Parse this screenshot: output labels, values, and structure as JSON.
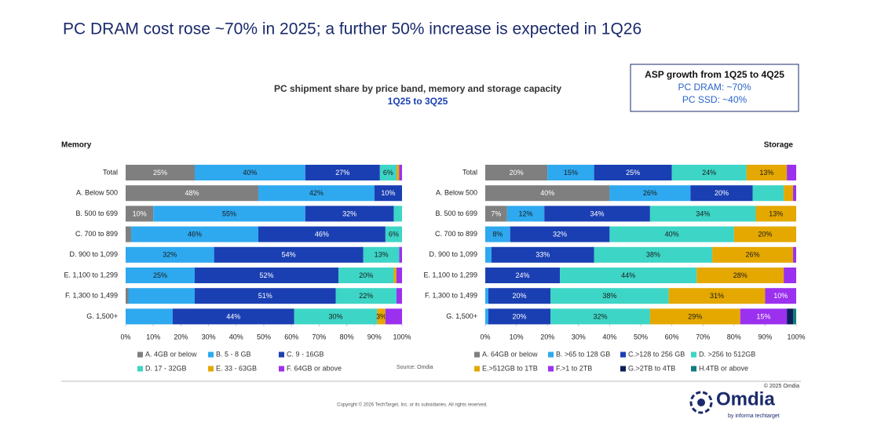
{
  "header": {
    "title": "PC DRAM cost rose ~70% in 2025; a further 50% increase is expected in 1Q26"
  },
  "asp_box": {
    "title": "ASP growth from 1Q25 to 4Q25",
    "lines": [
      "PC DRAM: ~70%",
      "PC SSD: ~40%"
    ]
  },
  "figure": {
    "title": "PC shipment share by price band, memory and storage capacity",
    "subtitle": "1Q25 to 3Q25",
    "source": "Source: Omdia"
  },
  "footer": {
    "copyright": "Copyright © 2026 TechTarget, Inc. or its subsidiaries. All rights reserved.",
    "logo_year": "© 2025 Omdia",
    "logo_name": "Omdia",
    "logo_tagline": "by informa techtarget"
  },
  "chart_data": [
    {
      "type": "bar",
      "orientation": "horizontal",
      "stacked": true,
      "title": "Memory",
      "categories": [
        "Total",
        "A. Below 500",
        "B. 500 to 699",
        "C. 700 to 899",
        "D. 900 to 1,099",
        "E. 1,100 to 1,299",
        "F. 1,300 to 1,499",
        "G. 1,500+"
      ],
      "xlim": [
        0,
        100
      ],
      "xticks": [
        {
          "value": 0,
          "label": "0%"
        },
        {
          "value": 10,
          "label": "10%"
        },
        {
          "value": 20,
          "label": "20%"
        },
        {
          "value": 30,
          "label": "30%"
        },
        {
          "value": 40,
          "label": "40%"
        },
        {
          "value": 50,
          "label": "50%"
        },
        {
          "value": 60,
          "label": "60%"
        },
        {
          "value": 70,
          "label": "70%"
        },
        {
          "value": 80,
          "label": "80%"
        },
        {
          "value": 90,
          "label": "90%"
        },
        {
          "value": 100,
          "label": "100%"
        }
      ],
      "series": [
        {
          "name": "A. 4GB or below",
          "color": "#7f7f7f",
          "values": [
            25,
            48,
            10,
            2,
            0,
            0,
            1,
            0
          ],
          "value_labels": [
            "25%",
            "48%",
            "10%",
            null,
            null,
            null,
            null,
            null
          ]
        },
        {
          "name": "B. 5 - 8 GB",
          "color": "#2ea9ef",
          "values": [
            40,
            42,
            55,
            46,
            32,
            25,
            24,
            17
          ],
          "value_labels": [
            "40%",
            "42%",
            "55%",
            "46%",
            "32%",
            "25%",
            null,
            null
          ]
        },
        {
          "name": "C. 9 - 16GB",
          "color": "#1a3fb3",
          "values": [
            27,
            10,
            32,
            46,
            54,
            52,
            51,
            44
          ],
          "value_labels": [
            "27%",
            "10%",
            "32%",
            "46%",
            "54%",
            "52%",
            "51%",
            "44%"
          ]
        },
        {
          "name": "D. 17 - 32GB",
          "color": "#3dd5c6",
          "values": [
            6,
            0,
            3,
            6,
            13,
            20,
            22,
            30
          ],
          "value_labels": [
            "6%",
            null,
            null,
            "6%",
            "13%",
            "20%",
            "22%",
            "30%"
          ]
        },
        {
          "name": "E. 33 - 63GB",
          "color": "#e5a800",
          "values": [
            1,
            0,
            0,
            0,
            0,
            1,
            0,
            3
          ],
          "value_labels": [
            null,
            null,
            null,
            null,
            null,
            null,
            null,
            "3%"
          ]
        },
        {
          "name": "F. 64GB or above",
          "color": "#9b30ef",
          "values": [
            1,
            0,
            0,
            0,
            1,
            2,
            2,
            6
          ],
          "value_labels": [
            null,
            null,
            null,
            null,
            null,
            null,
            null,
            null
          ]
        }
      ]
    },
    {
      "type": "bar",
      "orientation": "horizontal",
      "stacked": true,
      "title": "Storage",
      "categories": [
        "Total",
        "A. Below 500",
        "B. 500 to 699",
        "C. 700 to 899",
        "D. 900 to 1,099",
        "E. 1,100 to 1,299",
        "F. 1,300 to 1,499",
        "G. 1,500+"
      ],
      "xlim": [
        0,
        100
      ],
      "xticks": [
        {
          "value": 0,
          "label": "0%"
        },
        {
          "value": 10,
          "label": "10%"
        },
        {
          "value": 20,
          "label": "20%"
        },
        {
          "value": 30,
          "label": "30%"
        },
        {
          "value": 40,
          "label": "40%"
        },
        {
          "value": 50,
          "label": "50%"
        },
        {
          "value": 60,
          "label": "60%"
        },
        {
          "value": 70,
          "label": "70%"
        },
        {
          "value": 80,
          "label": "80%"
        },
        {
          "value": 90,
          "label": "90%"
        },
        {
          "value": 100,
          "label": "100%"
        }
      ],
      "series": [
        {
          "name": "A. 64GB or below",
          "color": "#7f7f7f",
          "values": [
            20,
            40,
            7,
            0,
            0,
            0,
            0,
            0
          ],
          "value_labels": [
            "20%",
            "40%",
            "7%",
            null,
            null,
            null,
            null,
            null
          ]
        },
        {
          "name": "B. >65 to 128 GB",
          "color": "#2ea9ef",
          "values": [
            15,
            26,
            12,
            8,
            2,
            0,
            1,
            1
          ],
          "value_labels": [
            "15%",
            "26%",
            "12%",
            "8%",
            null,
            null,
            null,
            null
          ]
        },
        {
          "name": "C.>128 to 256 GB",
          "color": "#1a3fb3",
          "values": [
            25,
            20,
            34,
            32,
            33,
            24,
            20,
            20
          ],
          "value_labels": [
            "25%",
            "20%",
            "34%",
            "32%",
            "33%",
            "24%",
            "20%",
            "20%"
          ]
        },
        {
          "name": "D. >256 to 512GB",
          "color": "#3dd5c6",
          "values": [
            24,
            10,
            34,
            40,
            38,
            44,
            38,
            32
          ],
          "value_labels": [
            "24%",
            null,
            "34%",
            "40%",
            "38%",
            "44%",
            "38%",
            "32%"
          ]
        },
        {
          "name": "E.>512GB to 1TB",
          "color": "#e5a800",
          "values": [
            13,
            3,
            13,
            20,
            26,
            28,
            31,
            29
          ],
          "value_labels": [
            "13%",
            null,
            "13%",
            "20%",
            "26%",
            "28%",
            "31%",
            "29%"
          ]
        },
        {
          "name": "F.>1 to 2TB",
          "color": "#9b30ef",
          "values": [
            3,
            1,
            0,
            0,
            1,
            4,
            10,
            15
          ],
          "value_labels": [
            null,
            null,
            null,
            null,
            null,
            null,
            "10%",
            "15%"
          ]
        },
        {
          "name": "G.>2TB to 4TB",
          "color": "#0d1f5c",
          "values": [
            0,
            0,
            0,
            0,
            0,
            0,
            0,
            2
          ],
          "value_labels": [
            null,
            null,
            null,
            null,
            null,
            null,
            null,
            null
          ]
        },
        {
          "name": "H.4TB or above",
          "color": "#0f7d7d",
          "values": [
            0,
            0,
            0,
            0,
            0,
            0,
            0,
            1
          ],
          "value_labels": [
            null,
            null,
            null,
            null,
            null,
            null,
            null,
            null
          ]
        }
      ]
    }
  ]
}
